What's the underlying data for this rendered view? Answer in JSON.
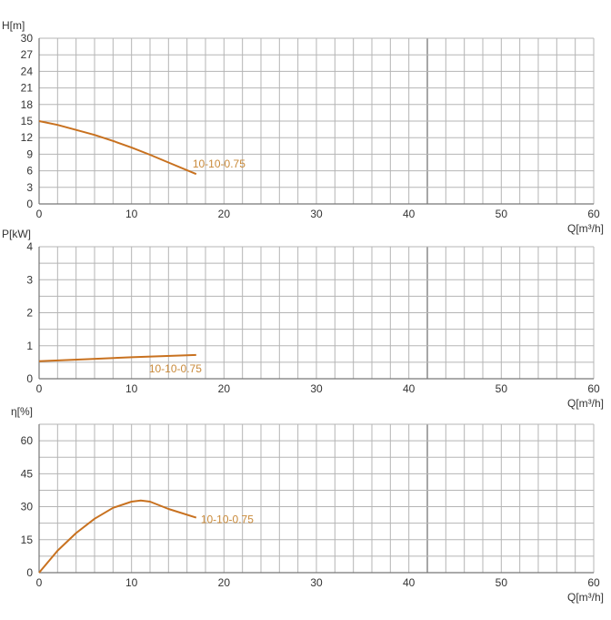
{
  "colors": {
    "curve": "#c8711f",
    "curve_label": "#c98a3a",
    "grid": "#b5b5b5",
    "grid_dark": "#8a8a8a"
  },
  "chart_data": [
    {
      "type": "line",
      "ylabel": "H[m]",
      "xlabel": "Q[m³/h]",
      "xlim": [
        0,
        60
      ],
      "ylim": [
        0,
        30
      ],
      "xticks": [
        0,
        10,
        20,
        30,
        40,
        50,
        60
      ],
      "yticks": [
        0,
        3,
        6,
        9,
        12,
        15,
        18,
        21,
        24,
        27,
        30
      ],
      "grid": true,
      "series": [
        {
          "name": "10-10-0.75",
          "x": [
            0,
            2,
            4,
            6,
            8,
            10,
            12,
            14,
            17
          ],
          "y": [
            15,
            14.3,
            13.4,
            12.5,
            11.4,
            10.2,
            8.9,
            7.5,
            5.4
          ]
        }
      ]
    },
    {
      "type": "line",
      "ylabel": "P[kW]",
      "xlabel": "Q[m³/h]",
      "xlim": [
        0,
        60
      ],
      "ylim": [
        0,
        4
      ],
      "xticks": [
        0,
        10,
        20,
        30,
        40,
        50,
        60
      ],
      "yticks": [
        0,
        1,
        2,
        3,
        4
      ],
      "grid": true,
      "series": [
        {
          "name": "10-10-0.75",
          "x": [
            0,
            5,
            10,
            17
          ],
          "y": [
            0.53,
            0.59,
            0.65,
            0.72
          ]
        }
      ]
    },
    {
      "type": "line",
      "ylabel": "η[%]",
      "xlabel": "Q[m³/h]",
      "xlim": [
        0,
        60
      ],
      "ylim": [
        0,
        67.5
      ],
      "xticks": [
        0,
        10,
        20,
        30,
        40,
        50,
        60
      ],
      "yticks": [
        0,
        15,
        30,
        45,
        60
      ],
      "grid": true,
      "series": [
        {
          "name": "10-10-0.75",
          "x": [
            0,
            2,
            4,
            6,
            8,
            10,
            11,
            12,
            14,
            17
          ],
          "y": [
            0,
            10,
            18,
            24.5,
            29.5,
            32.3,
            32.8,
            32.3,
            29,
            25
          ]
        }
      ]
    }
  ]
}
